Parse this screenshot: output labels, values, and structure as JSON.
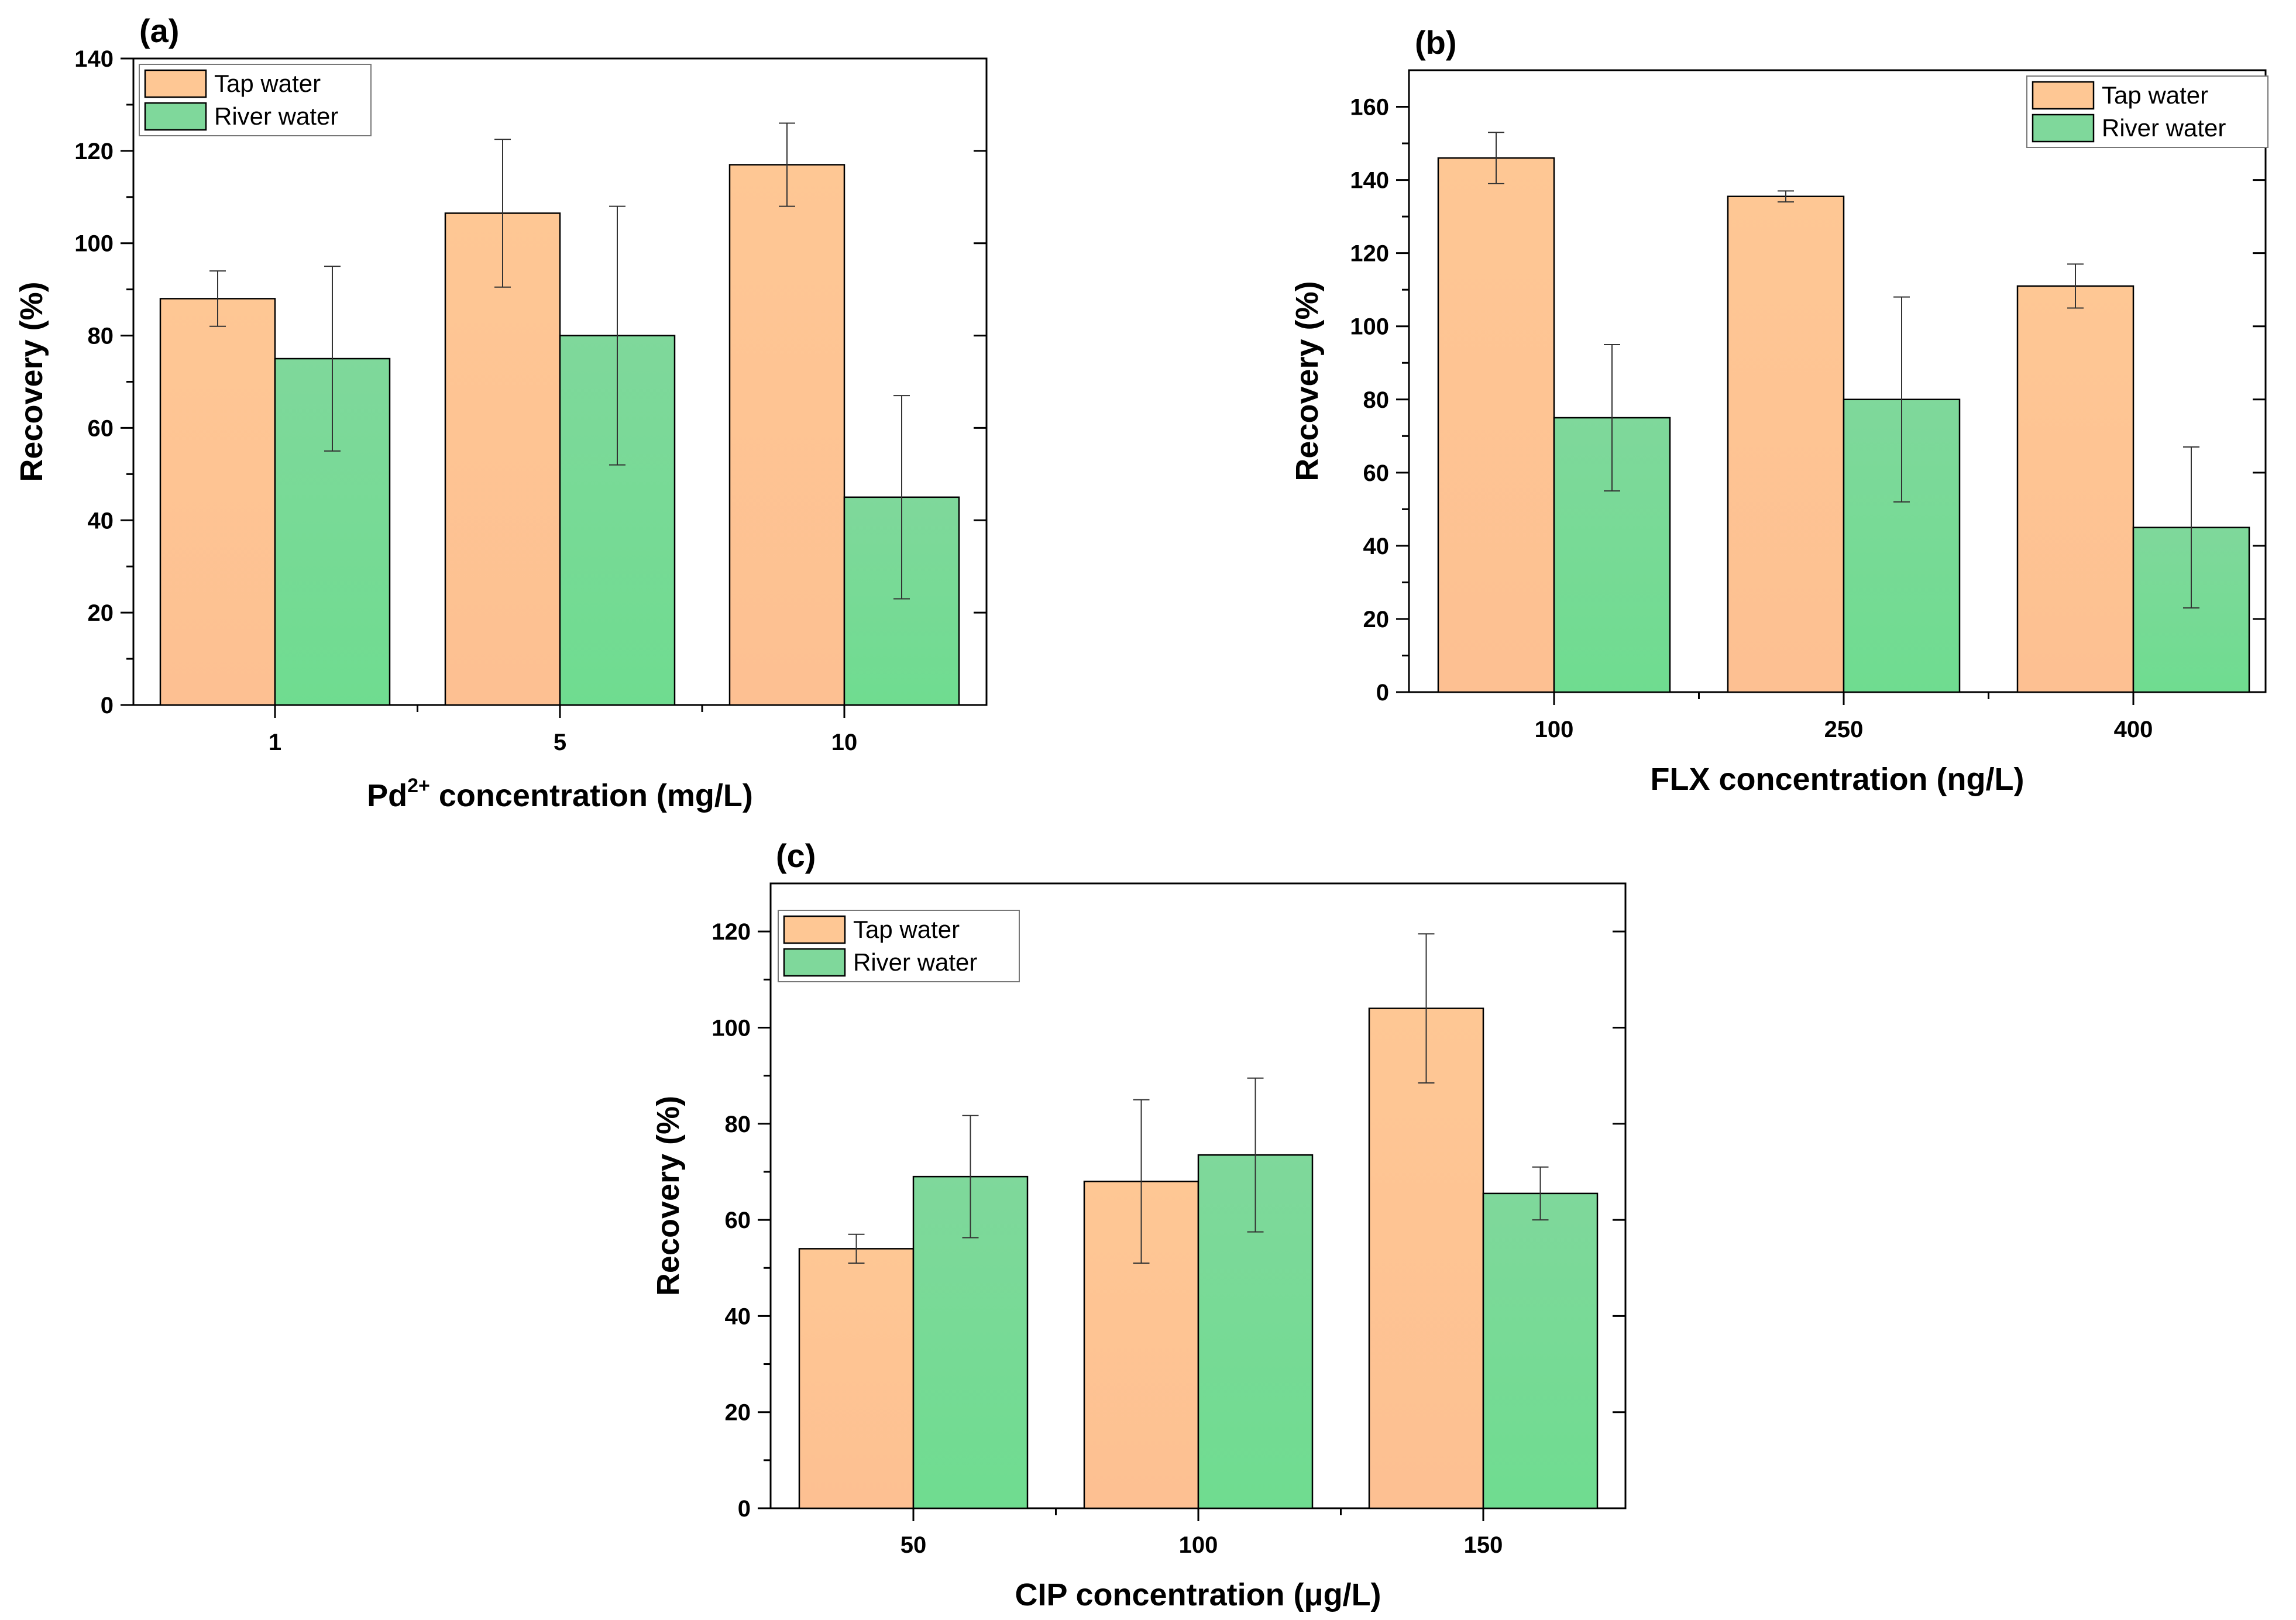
{
  "colors": {
    "tap": "#fec794",
    "river": "#7fd89b",
    "axis": "#000000"
  },
  "chart_data": [
    {
      "type": "bar",
      "panel": "(a)",
      "categories": [
        "1",
        "5",
        "10"
      ],
      "series": [
        {
          "name": "Tap water",
          "values": [
            88,
            106.5,
            117
          ],
          "errors": [
            6,
            16,
            9
          ]
        },
        {
          "name": "River water",
          "values": [
            75,
            80,
            45
          ],
          "errors": [
            20,
            28,
            22
          ]
        }
      ],
      "xlabel": "Pd",
      "xlabel_sup": "2+",
      "xlabel_rest": " concentration (mg/L)",
      "ylabel": "Recovery (%)",
      "ylim": [
        0,
        140
      ],
      "yticks": [
        "0",
        "20",
        "40",
        "60",
        "80",
        "100",
        "120",
        "140"
      ],
      "legend": [
        "Tap water",
        "River water"
      ],
      "legend_position": "top-left"
    },
    {
      "type": "bar",
      "panel": "(b)",
      "categories": [
        "100",
        "250",
        "400"
      ],
      "series": [
        {
          "name": "Tap water",
          "values": [
            146,
            135.5,
            111
          ],
          "errors": [
            7,
            1.5,
            6
          ]
        },
        {
          "name": "River water",
          "values": [
            75,
            80,
            45
          ],
          "errors": [
            20,
            28,
            22
          ]
        }
      ],
      "xlabel": "FLX concentration (ng/L)",
      "ylabel": "Recovery (%)",
      "ylim": [
        0,
        170
      ],
      "yticks": [
        "0",
        "20",
        "40",
        "60",
        "80",
        "100",
        "120",
        "140",
        "160"
      ],
      "legend": [
        "Tap water",
        "River water"
      ],
      "legend_position": "top-right"
    },
    {
      "type": "bar",
      "panel": "(c)",
      "categories": [
        "50",
        "100",
        "150"
      ],
      "series": [
        {
          "name": "Tap water",
          "values": [
            54,
            68,
            104
          ],
          "errors": [
            3,
            17,
            15.5
          ]
        },
        {
          "name": "River water",
          "values": [
            69,
            73.5,
            65.5
          ],
          "errors": [
            12.7,
            16,
            5.5
          ]
        }
      ],
      "xlabel": "CIP concentration (μg/L)",
      "ylabel": "Recovery (%)",
      "ylim": [
        0,
        130
      ],
      "yticks": [
        "0",
        "20",
        "40",
        "60",
        "80",
        "100",
        "120"
      ],
      "legend": [
        "Tap water",
        "River water"
      ],
      "legend_position": "top-left"
    }
  ]
}
